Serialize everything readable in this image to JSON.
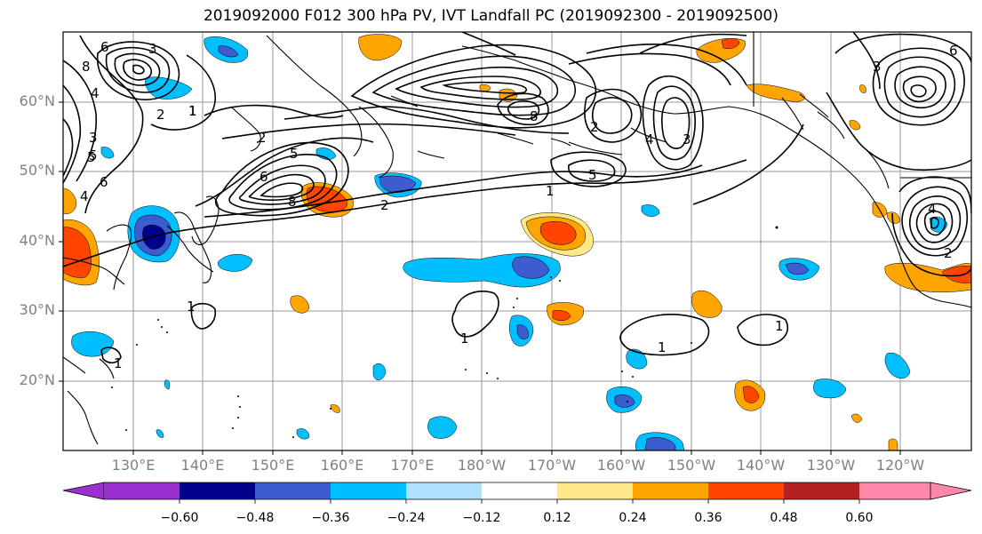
{
  "title": "2019092000 F012 300 hPa PV, IVT Landfall PC (2019092300 - 2019092500)",
  "lat_labels": [
    "60°N",
    "50°N",
    "40°N",
    "30°N",
    "20°N"
  ],
  "lon_labels": [
    "130°E",
    "140°E",
    "150°E",
    "160°E",
    "170°E",
    "180°W",
    "170°W",
    "160°W",
    "150°W",
    "140°W",
    "130°W",
    "120°W"
  ],
  "colorbar": {
    "colors": [
      "#9b30d0",
      "#00008b",
      "#3d5cd0",
      "#00bfff",
      "#b0e0ff",
      "#ffffff",
      "#ffe88a",
      "#ffa500",
      "#ff4500",
      "#b22222",
      "#ff88aa"
    ],
    "ticks": [
      "−0.60",
      "−0.48",
      "−0.36",
      "−0.24",
      "−0.12",
      "0.12",
      "0.24",
      "0.36",
      "0.48",
      "0.60"
    ]
  },
  "contour_labels": [
    "6",
    "8",
    "4",
    "3",
    "2",
    "1",
    "5",
    "3",
    "5",
    "6",
    "4",
    "8",
    "6",
    "2",
    "8",
    "5",
    "2",
    "1",
    "2",
    "4",
    "3",
    "5",
    "1",
    "1",
    "6",
    "4",
    "3",
    "2",
    "1",
    "1",
    "1",
    "1"
  ]
}
